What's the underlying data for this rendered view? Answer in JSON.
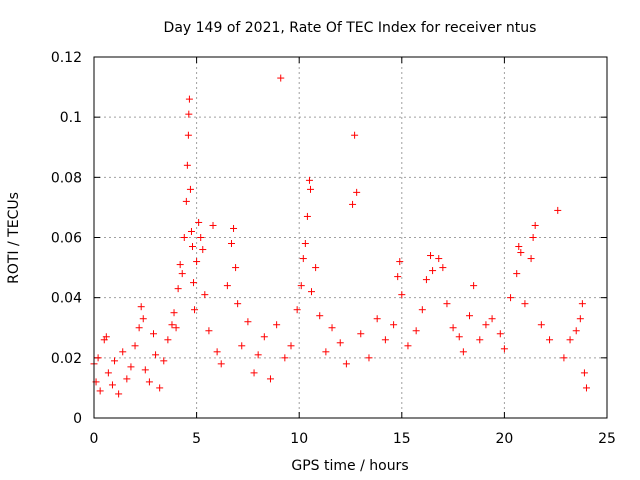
{
  "chart_data": {
    "type": "scatter",
    "title": "Day 149 of 2021, Rate Of TEC Index for receiver ntus",
    "xlabel": "GPS time / hours",
    "ylabel": "ROTI / TECUs",
    "xlim": [
      0,
      25
    ],
    "ylim": [
      0,
      0.12
    ],
    "xticks": [
      0,
      5,
      10,
      15,
      20,
      25
    ],
    "xtick_labels": [
      "0",
      "5",
      "10",
      "15",
      "20",
      "25"
    ],
    "yticks": [
      0,
      0.02,
      0.04,
      0.06,
      0.08,
      0.1,
      0.12
    ],
    "ytick_labels": [
      "0",
      "0.02",
      "0.04",
      "0.06",
      "0.08",
      "0.1",
      "0.12"
    ],
    "grid": true,
    "marker": "+",
    "color": "#ff0000",
    "series": [
      {
        "name": "ROTI",
        "points": [
          [
            0.0,
            0.018
          ],
          [
            0.1,
            0.012
          ],
          [
            0.2,
            0.02
          ],
          [
            0.3,
            0.009
          ],
          [
            0.5,
            0.026
          ],
          [
            0.6,
            0.027
          ],
          [
            0.7,
            0.015
          ],
          [
            0.9,
            0.011
          ],
          [
            1.0,
            0.019
          ],
          [
            1.2,
            0.008
          ],
          [
            1.4,
            0.022
          ],
          [
            1.6,
            0.013
          ],
          [
            1.8,
            0.017
          ],
          [
            2.0,
            0.024
          ],
          [
            2.2,
            0.03
          ],
          [
            2.3,
            0.037
          ],
          [
            2.4,
            0.033
          ],
          [
            2.5,
            0.016
          ],
          [
            2.7,
            0.012
          ],
          [
            2.9,
            0.028
          ],
          [
            3.0,
            0.021
          ],
          [
            3.2,
            0.01
          ],
          [
            3.4,
            0.019
          ],
          [
            3.6,
            0.026
          ],
          [
            3.8,
            0.031
          ],
          [
            3.9,
            0.035
          ],
          [
            4.0,
            0.03
          ],
          [
            4.1,
            0.043
          ],
          [
            4.2,
            0.051
          ],
          [
            4.3,
            0.048
          ],
          [
            4.4,
            0.06
          ],
          [
            4.5,
            0.072
          ],
          [
            4.55,
            0.084
          ],
          [
            4.6,
            0.094
          ],
          [
            4.62,
            0.101
          ],
          [
            4.65,
            0.106
          ],
          [
            4.7,
            0.076
          ],
          [
            4.75,
            0.062
          ],
          [
            4.8,
            0.057
          ],
          [
            4.85,
            0.045
          ],
          [
            4.9,
            0.036
          ],
          [
            5.0,
            0.052
          ],
          [
            5.1,
            0.065
          ],
          [
            5.2,
            0.06
          ],
          [
            5.3,
            0.056
          ],
          [
            5.4,
            0.041
          ],
          [
            5.6,
            0.029
          ],
          [
            5.8,
            0.064
          ],
          [
            6.0,
            0.022
          ],
          [
            6.2,
            0.018
          ],
          [
            6.5,
            0.044
          ],
          [
            6.7,
            0.058
          ],
          [
            6.8,
            0.063
          ],
          [
            6.9,
            0.05
          ],
          [
            7.0,
            0.038
          ],
          [
            7.2,
            0.024
          ],
          [
            7.5,
            0.032
          ],
          [
            7.8,
            0.015
          ],
          [
            8.0,
            0.021
          ],
          [
            8.3,
            0.027
          ],
          [
            8.6,
            0.013
          ],
          [
            8.9,
            0.031
          ],
          [
            9.1,
            0.113
          ],
          [
            9.3,
            0.02
          ],
          [
            9.6,
            0.024
          ],
          [
            9.9,
            0.036
          ],
          [
            10.1,
            0.044
          ],
          [
            10.2,
            0.053
          ],
          [
            10.3,
            0.058
          ],
          [
            10.4,
            0.067
          ],
          [
            10.5,
            0.079
          ],
          [
            10.55,
            0.076
          ],
          [
            10.6,
            0.042
          ],
          [
            10.8,
            0.05
          ],
          [
            11.0,
            0.034
          ],
          [
            11.3,
            0.022
          ],
          [
            11.6,
            0.03
          ],
          [
            12.0,
            0.025
          ],
          [
            12.3,
            0.018
          ],
          [
            12.6,
            0.071
          ],
          [
            12.7,
            0.094
          ],
          [
            12.8,
            0.075
          ],
          [
            13.0,
            0.028
          ],
          [
            13.4,
            0.02
          ],
          [
            13.8,
            0.033
          ],
          [
            14.2,
            0.026
          ],
          [
            14.6,
            0.031
          ],
          [
            14.8,
            0.047
          ],
          [
            14.9,
            0.052
          ],
          [
            15.0,
            0.041
          ],
          [
            15.3,
            0.024
          ],
          [
            15.7,
            0.029
          ],
          [
            16.0,
            0.036
          ],
          [
            16.2,
            0.046
          ],
          [
            16.4,
            0.054
          ],
          [
            16.5,
            0.049
          ],
          [
            16.8,
            0.053
          ],
          [
            17.0,
            0.05
          ],
          [
            17.2,
            0.038
          ],
          [
            17.5,
            0.03
          ],
          [
            17.8,
            0.027
          ],
          [
            18.0,
            0.022
          ],
          [
            18.3,
            0.034
          ],
          [
            18.5,
            0.044
          ],
          [
            18.8,
            0.026
          ],
          [
            19.1,
            0.031
          ],
          [
            19.4,
            0.033
          ],
          [
            19.8,
            0.028
          ],
          [
            20.0,
            0.023
          ],
          [
            20.3,
            0.04
          ],
          [
            20.6,
            0.048
          ],
          [
            20.7,
            0.057
          ],
          [
            20.8,
            0.055
          ],
          [
            21.0,
            0.038
          ],
          [
            21.3,
            0.053
          ],
          [
            21.4,
            0.06
          ],
          [
            21.5,
            0.064
          ],
          [
            21.8,
            0.031
          ],
          [
            22.2,
            0.026
          ],
          [
            22.6,
            0.069
          ],
          [
            22.9,
            0.02
          ],
          [
            23.2,
            0.026
          ],
          [
            23.5,
            0.029
          ],
          [
            23.7,
            0.033
          ],
          [
            23.8,
            0.038
          ],
          [
            23.9,
            0.015
          ],
          [
            24.0,
            0.01
          ]
        ]
      }
    ]
  }
}
